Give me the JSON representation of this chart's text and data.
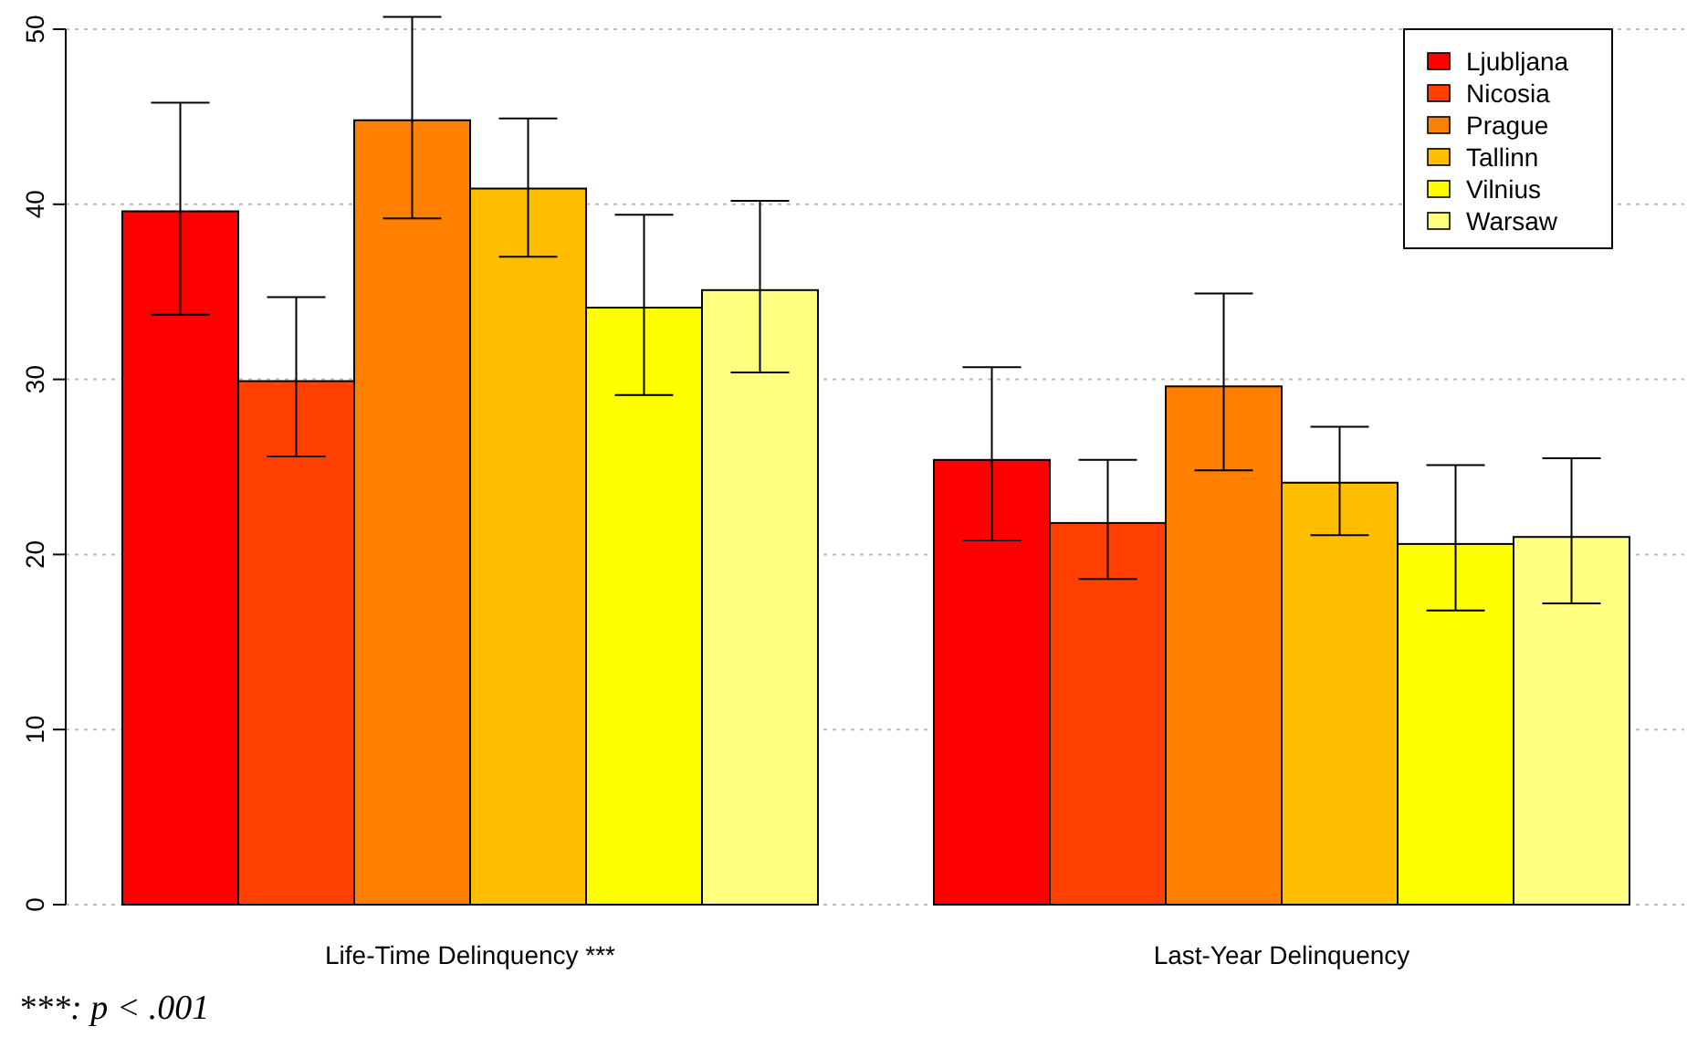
{
  "chart_data": {
    "type": "bar",
    "categories": [
      "Life-Time Delinquency ***",
      "Last-Year Delinquency"
    ],
    "series": [
      {
        "name": "Ljubljana",
        "color": "#ff0000",
        "values": [
          39.6,
          25.4
        ],
        "errors": [
          [
            33.7,
            45.8
          ],
          [
            20.8,
            30.7
          ]
        ]
      },
      {
        "name": "Nicosia",
        "color": "#ff4000",
        "values": [
          29.9,
          21.8
        ],
        "errors": [
          [
            25.6,
            34.7
          ],
          [
            18.6,
            25.4
          ]
        ]
      },
      {
        "name": "Prague",
        "color": "#ff8000",
        "values": [
          44.8,
          29.6
        ],
        "errors": [
          [
            39.2,
            50.7
          ],
          [
            24.8,
            34.9
          ]
        ]
      },
      {
        "name": "Tallinn",
        "color": "#ffbf00",
        "values": [
          40.9,
          24.1
        ],
        "errors": [
          [
            37.0,
            44.9
          ],
          [
            21.1,
            27.3
          ]
        ]
      },
      {
        "name": "Vilnius",
        "color": "#ffff00",
        "values": [
          34.1,
          20.6
        ],
        "errors": [
          [
            29.1,
            39.4
          ],
          [
            16.8,
            25.1
          ]
        ]
      },
      {
        "name": "Warsaw",
        "color": "#ffff80",
        "values": [
          35.1,
          21.0
        ],
        "errors": [
          [
            30.4,
            40.2
          ],
          [
            17.2,
            25.5
          ]
        ]
      }
    ],
    "ylim": [
      0,
      50
    ],
    "yticks": [
      0,
      10,
      20,
      30,
      40,
      50
    ],
    "grid": "y",
    "legend": "top right",
    "annotations": [
      "***: p < .001"
    ]
  }
}
